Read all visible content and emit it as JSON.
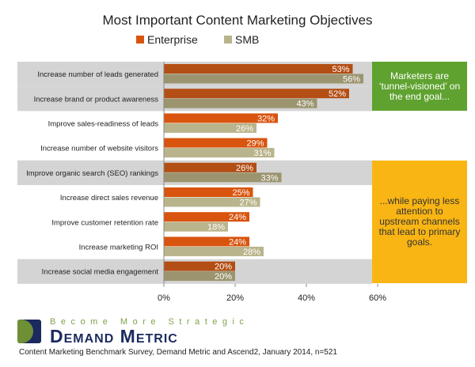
{
  "chart_data": {
    "type": "bar",
    "orientation": "horizontal",
    "title": "Most Important Content Marketing Objectives",
    "categories": [
      "Increase number of leads generated",
      "Increase brand or product awareness",
      "Improve sales-readiness of leads",
      "Increase number of website visitors",
      "Improve organic search (SEO) rankings",
      "Increase direct sales revenue",
      "Improve customer retention rate",
      "Increase marketing ROI",
      "Increase social media engagement"
    ],
    "series": [
      {
        "name": "Enterprise",
        "color": "#d9540e",
        "values": [
          53,
          52,
          32,
          29,
          26,
          25,
          24,
          24,
          20
        ]
      },
      {
        "name": "SMB",
        "color": "#b9b48b",
        "values": [
          56,
          43,
          26,
          31,
          33,
          27,
          18,
          28,
          20
        ]
      }
    ],
    "xlim": [
      0,
      60
    ],
    "xticks": [
      "0%",
      "20%",
      "40%",
      "60%"
    ],
    "highlighted_rows": [
      0,
      1,
      4,
      8
    ],
    "legend": "top",
    "grid": false
  },
  "callouts": {
    "green": {
      "text": "Marketers are ‘tunnel-visioned’ on the end goal...",
      "color": "#5fa22f"
    },
    "orange": {
      "text": "...while paying less attention to upstream channels that lead to primary goals.",
      "color": "#f9b514"
    }
  },
  "logo": {
    "tagline": "Become More Strategic",
    "name": "Demand Metric"
  },
  "footer": "Content Marketing Benchmark Survey, Demand Metric and Ascend2, January 2014, n=521"
}
